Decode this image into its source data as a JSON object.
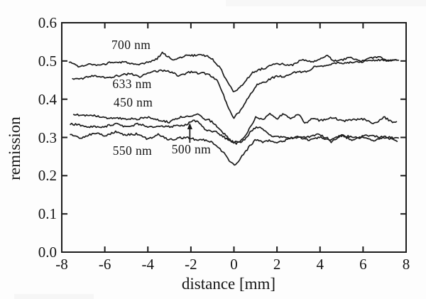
{
  "colors": {
    "ink": "#1c1c1c",
    "paper": "#fdfdfd",
    "text": "#141414"
  },
  "chart_data": {
    "type": "line",
    "title": "",
    "xlabel": "distance [mm]",
    "ylabel": "remission",
    "xlim": [
      -8,
      8
    ],
    "ylim": [
      0.0,
      0.6
    ],
    "xticks": [
      -8,
      -6,
      -4,
      -2,
      0,
      2,
      4,
      6,
      8
    ],
    "xtick_labels": [
      "-8",
      "-6",
      "-4",
      "-2",
      "0",
      "2",
      "4",
      "6",
      "8"
    ],
    "yticks": [
      0.0,
      0.1,
      0.2,
      0.3,
      0.4,
      0.5,
      0.6
    ],
    "ytick_labels": [
      "0.0",
      "0.1",
      "0.2",
      "0.3",
      "0.4",
      "0.5",
      "0.6"
    ],
    "grid": false,
    "legend": "none",
    "frame": "box-with-inward-ticks",
    "series": [
      {
        "name": "700 nm",
        "seed": 3,
        "noise_coarse": 0.006,
        "noise_fine": 0.0026,
        "x": [
          -7.65,
          -7,
          -6.5,
          -6,
          -5.5,
          -5,
          -4.5,
          -4,
          -3.6,
          -3.3,
          -3,
          -2.7,
          -2.3,
          -2,
          -1.6,
          -1.2,
          -0.9,
          -0.6,
          -0.3,
          0,
          0.25,
          0.5,
          0.8,
          1.2,
          1.6,
          2,
          2.5,
          3,
          3.5,
          4,
          4.3,
          4.6,
          5,
          5.5,
          6,
          6.5,
          7,
          7.65
        ],
        "y": [
          0.494,
          0.49,
          0.493,
          0.491,
          0.496,
          0.497,
          0.492,
          0.499,
          0.504,
          0.525,
          0.512,
          0.508,
          0.512,
          0.513,
          0.516,
          0.508,
          0.495,
          0.478,
          0.448,
          0.417,
          0.428,
          0.448,
          0.465,
          0.477,
          0.483,
          0.489,
          0.493,
          0.497,
          0.5,
          0.498,
          0.512,
          0.498,
          0.503,
          0.507,
          0.503,
          0.51,
          0.506,
          0.51
        ]
      },
      {
        "name": "633 nm",
        "seed": 14,
        "noise_coarse": 0.0055,
        "noise_fine": 0.0026,
        "x": [
          -7.5,
          -7,
          -6.5,
          -6,
          -5.5,
          -5,
          -4.5,
          -4,
          -3.5,
          -3,
          -2.5,
          -2,
          -1.5,
          -1.1,
          -0.8,
          -0.5,
          -0.25,
          0,
          0.3,
          0.6,
          1,
          1.4,
          1.8,
          2.2,
          2.6,
          3,
          3.5,
          4,
          4.5,
          5,
          5.5,
          6,
          6.5,
          7,
          7.6
        ],
        "y": [
          0.452,
          0.456,
          0.463,
          0.458,
          0.462,
          0.465,
          0.463,
          0.466,
          0.47,
          0.474,
          0.465,
          0.47,
          0.474,
          0.466,
          0.452,
          0.415,
          0.375,
          0.346,
          0.368,
          0.402,
          0.433,
          0.448,
          0.455,
          0.459,
          0.463,
          0.468,
          0.473,
          0.487,
          0.494,
          0.499,
          0.496,
          0.501,
          0.505,
          0.501,
          0.506
        ]
      },
      {
        "name": "450 nm",
        "seed": 25,
        "noise_coarse": 0.0075,
        "noise_fine": 0.0026,
        "x": [
          -7.45,
          -7,
          -6.5,
          -6,
          -5.5,
          -5,
          -4.5,
          -4,
          -3.5,
          -3,
          -2.5,
          -2,
          -1.7,
          -1.3,
          -1,
          -0.7,
          -0.4,
          -0.15,
          0.1,
          0.4,
          0.7,
          1,
          1.3,
          1.7,
          2,
          2.3,
          2.7,
          3,
          3.3,
          3.7,
          4,
          4.5,
          5,
          5.5,
          6,
          6.5,
          7,
          7.6
        ],
        "y": [
          0.359,
          0.352,
          0.356,
          0.349,
          0.357,
          0.352,
          0.349,
          0.355,
          0.349,
          0.344,
          0.36,
          0.353,
          0.367,
          0.345,
          0.338,
          0.327,
          0.31,
          0.295,
          0.286,
          0.298,
          0.32,
          0.348,
          0.34,
          0.356,
          0.342,
          0.358,
          0.343,
          0.357,
          0.344,
          0.356,
          0.348,
          0.352,
          0.347,
          0.352,
          0.346,
          0.341,
          0.346,
          0.338
        ]
      },
      {
        "name": "500 nm",
        "seed": 36,
        "noise_coarse": 0.006,
        "noise_fine": 0.0026,
        "x": [
          -7.6,
          -7,
          -6.5,
          -6,
          -5.5,
          -5,
          -4.5,
          -4,
          -3.5,
          -3,
          -2.6,
          -2.2,
          -1.95,
          -1.6,
          -1.2,
          -0.9,
          -0.6,
          -0.3,
          0,
          0.3,
          0.6,
          0.9,
          1.2,
          1.5,
          2,
          2.5,
          3,
          3.5,
          4,
          4.5,
          5,
          5.5,
          6,
          6.5,
          7,
          7.65
        ],
        "y": [
          0.33,
          0.326,
          0.332,
          0.327,
          0.331,
          0.326,
          0.33,
          0.325,
          0.331,
          0.328,
          0.333,
          0.338,
          0.343,
          0.334,
          0.322,
          0.312,
          0.3,
          0.29,
          0.283,
          0.287,
          0.303,
          0.318,
          0.322,
          0.31,
          0.305,
          0.3,
          0.306,
          0.3,
          0.308,
          0.3,
          0.305,
          0.299,
          0.307,
          0.302,
          0.305,
          0.299
        ]
      },
      {
        "name": "550 nm",
        "seed": 47,
        "noise_coarse": 0.0062,
        "noise_fine": 0.0026,
        "x": [
          -7.6,
          -7,
          -6.5,
          -6,
          -5.5,
          -5,
          -4.5,
          -4,
          -3.5,
          -3,
          -2.5,
          -2,
          -1.5,
          -1.1,
          -0.8,
          -0.5,
          -0.25,
          0,
          0.2,
          0.45,
          0.7,
          1,
          1.3,
          1.7,
          2,
          2.5,
          3,
          3.5,
          4,
          4.5,
          5,
          5.5,
          6,
          6.5,
          7,
          7.6
        ],
        "y": [
          0.307,
          0.303,
          0.311,
          0.305,
          0.313,
          0.304,
          0.308,
          0.301,
          0.308,
          0.299,
          0.303,
          0.3,
          0.295,
          0.289,
          0.277,
          0.258,
          0.24,
          0.231,
          0.238,
          0.255,
          0.272,
          0.293,
          0.284,
          0.294,
          0.289,
          0.292,
          0.297,
          0.291,
          0.299,
          0.294,
          0.301,
          0.295,
          0.304,
          0.297,
          0.303,
          0.296
        ]
      }
    ],
    "annotations": [
      {
        "text": "700 nm",
        "x": -4.78,
        "y": 0.542
      },
      {
        "text": "633 nm",
        "x": -4.73,
        "y": 0.44
      },
      {
        "text": "450 nm",
        "x": -4.68,
        "y": 0.392
      },
      {
        "text": "550 nm",
        "x": -4.72,
        "y": 0.266
      },
      {
        "text": "500 nm",
        "x": -1.98,
        "y": 0.269
      }
    ],
    "arrow": {
      "x": -2.05,
      "y_from": 0.286,
      "y_to": 0.338,
      "points_to": "500 nm"
    }
  }
}
